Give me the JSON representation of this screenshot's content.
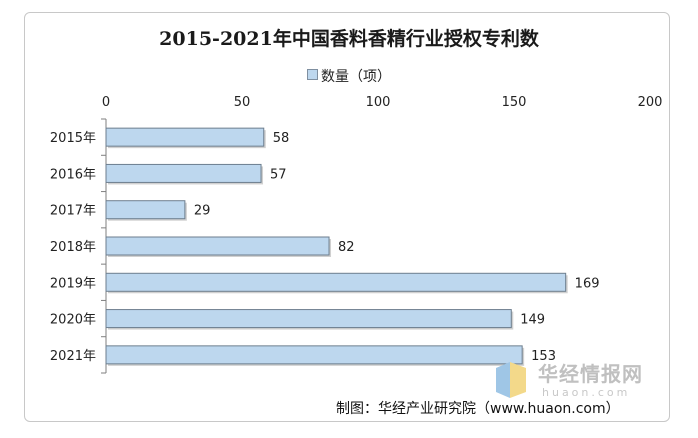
{
  "chart_data": {
    "type": "bar",
    "orientation": "horizontal",
    "title": "2015-2021年中国香料香精行业授权专利数",
    "categories": [
      "2015年",
      "2016年",
      "2017年",
      "2018年",
      "2019年",
      "2020年",
      "2021年"
    ],
    "series": [
      {
        "name": "数量（项）",
        "values": [
          58,
          57,
          29,
          82,
          169,
          149,
          153
        ]
      }
    ],
    "xlim": [
      0,
      200
    ],
    "x_ticks": [
      0,
      50,
      100,
      150,
      200
    ],
    "x_axis_position": "top",
    "grid": false,
    "legend_position": "top",
    "colors": {
      "bar_fill": "#bdd7ee",
      "bar_stroke": "#6d7e8e"
    }
  },
  "source_text": "制图：华经产业研究院（www.huaon.com）",
  "watermark": {
    "text": "华经情报网",
    "sub": "huaon.com",
    "icon": "huajing-logo-icon"
  }
}
